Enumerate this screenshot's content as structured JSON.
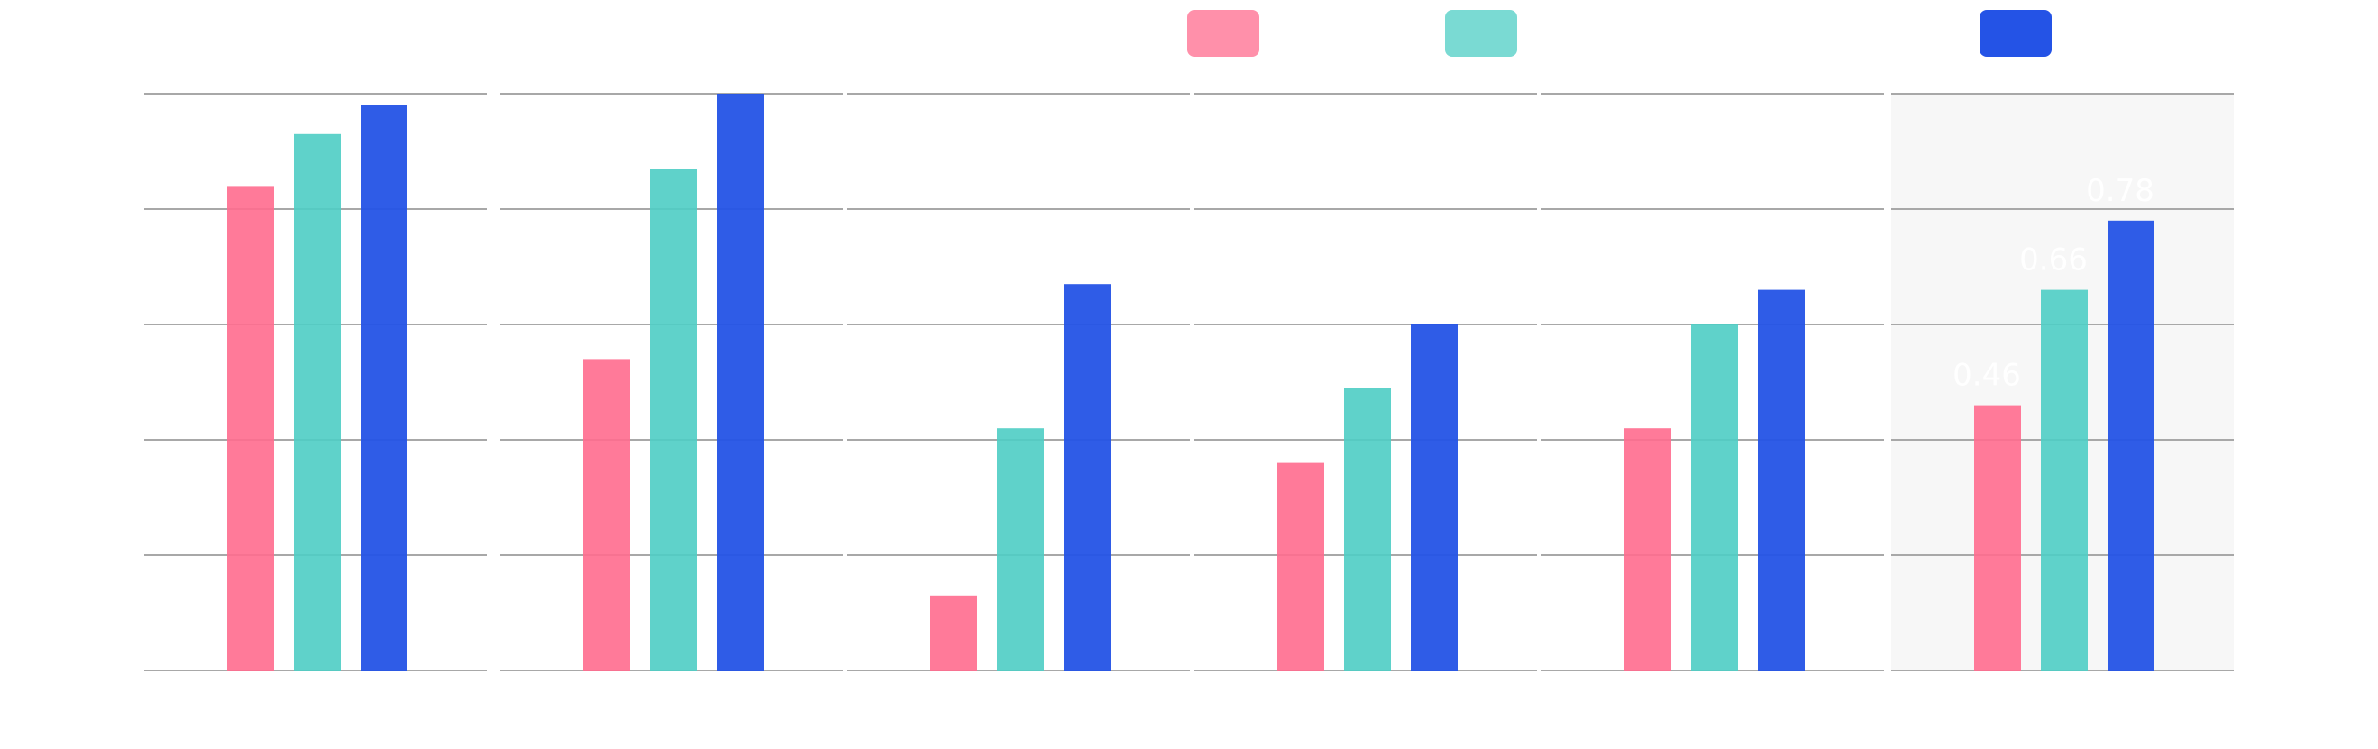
{
  "chart_data": {
    "type": "bar",
    "title": "",
    "xlabel": "",
    "ylabel": "",
    "ylim": [
      0,
      1.0
    ],
    "grid": true,
    "legend_placement": "top-center",
    "panels": [
      {
        "values": [
          0.84,
          0.93,
          0.98
        ]
      },
      {
        "values": [
          0.54,
          0.87,
          1.0
        ]
      },
      {
        "values": [
          0.13,
          0.42,
          0.67
        ]
      },
      {
        "values": [
          0.36,
          0.49,
          0.6
        ]
      },
      {
        "values": [
          0.42,
          0.6,
          0.66
        ]
      },
      {
        "values": [
          0.46,
          0.66,
          0.78
        ],
        "highlighted": true,
        "labels": [
          "0.46",
          "0.66",
          "0.78"
        ]
      }
    ],
    "series_colors": [
      "#ff6b8e",
      "#4ecdc4",
      "#2453e6"
    ]
  }
}
